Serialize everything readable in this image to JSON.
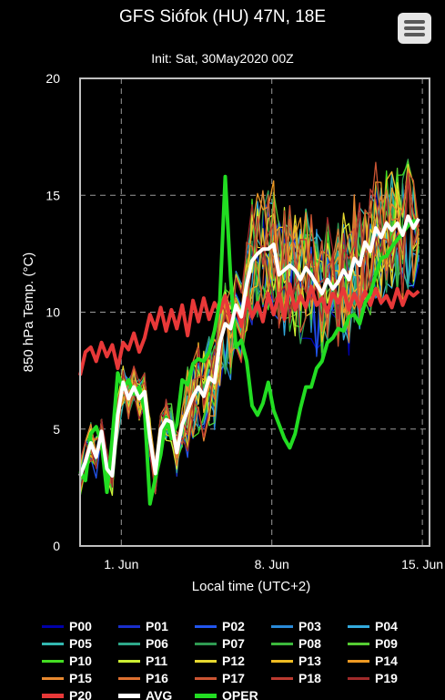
{
  "header": {
    "title": "GFS Siófok (HU) 47N, 18E",
    "subtitle": "Init: Sat, 30May2020 00Z"
  },
  "menu": {
    "icon": "hamburger-menu-icon"
  },
  "chart_data": {
    "type": "line",
    "ylabel": "850 hPa Temp. (°C)",
    "xlabel": "Local time (UTC+2)",
    "ylim": [
      0,
      20
    ],
    "yticks": [
      0,
      5,
      10,
      15,
      20
    ],
    "xlim": [
      "2020-05-30T02:00",
      "2020-06-15T08:00"
    ],
    "xticks": [
      {
        "label": "1. Jun",
        "t": "2020-06-01T00:00"
      },
      {
        "label": "8. Jun",
        "t": "2020-06-08T00:00"
      },
      {
        "label": "15. Jun",
        "t": "2020-06-15T00:00"
      }
    ],
    "grid": true,
    "legend_position": "bottom",
    "series": [
      {
        "name": "P00",
        "color": "#0000aa"
      },
      {
        "name": "P01",
        "color": "#1a2fcc"
      },
      {
        "name": "P02",
        "color": "#2255ee"
      },
      {
        "name": "P03",
        "color": "#2a8ad8"
      },
      {
        "name": "P04",
        "color": "#33aadd"
      },
      {
        "name": "P05",
        "color": "#33b8b0"
      },
      {
        "name": "P06",
        "color": "#2ea88a"
      },
      {
        "name": "P07",
        "color": "#2f9a52"
      },
      {
        "name": "P08",
        "color": "#3cb83c"
      },
      {
        "name": "P09",
        "color": "#55cc33"
      },
      {
        "name": "P10",
        "color": "#44dd22"
      },
      {
        "name": "P11",
        "color": "#ccee33"
      },
      {
        "name": "P12",
        "color": "#e6d830"
      },
      {
        "name": "P13",
        "color": "#eebb22"
      },
      {
        "name": "P14",
        "color": "#ee9922"
      },
      {
        "name": "P15",
        "color": "#e88830"
      },
      {
        "name": "P16",
        "color": "#dd7030"
      },
      {
        "name": "P17",
        "color": "#cc5533"
      },
      {
        "name": "P18",
        "color": "#bb3a30"
      },
      {
        "name": "P19",
        "color": "#a02a2a"
      },
      {
        "name": "P20",
        "color": "#e83838",
        "values": [
          [
            0,
            7.3
          ],
          [
            0.25,
            8.3
          ],
          [
            0.5,
            8.5
          ],
          [
            0.75,
            7.9
          ],
          [
            1,
            8.7
          ],
          [
            1.25,
            8.1
          ],
          [
            1.5,
            8.6
          ],
          [
            1.75,
            7.6
          ],
          [
            2,
            8.7
          ],
          [
            2.25,
            8.4
          ],
          [
            2.5,
            9.1
          ],
          [
            2.75,
            8.3
          ],
          [
            3,
            8.9
          ],
          [
            3.25,
            9.9
          ],
          [
            3.5,
            9.3
          ],
          [
            3.75,
            10.2
          ],
          [
            4,
            9.2
          ],
          [
            4.25,
            10.1
          ],
          [
            4.5,
            9.3
          ],
          [
            4.75,
            10.3
          ],
          [
            5,
            9.0
          ],
          [
            5.25,
            10.5
          ],
          [
            5.5,
            9.6
          ],
          [
            5.75,
            10.6
          ],
          [
            6,
            9.7
          ],
          [
            6.25,
            10.4
          ],
          [
            6.5,
            10.0
          ],
          [
            6.75,
            10.7
          ],
          [
            7,
            9.6
          ],
          [
            7.25,
            10.3
          ],
          [
            7.5,
            9.4
          ],
          [
            7.75,
            10.6
          ],
          [
            8,
            9.8
          ],
          [
            8.25,
            10.4
          ],
          [
            8.5,
            9.6
          ],
          [
            8.75,
            10.8
          ],
          [
            9,
            9.9
          ],
          [
            9.25,
            10.8
          ],
          [
            9.5,
            9.7
          ],
          [
            9.75,
            11.2
          ],
          [
            10,
            10.1
          ],
          [
            10.25,
            10.7
          ],
          [
            10.5,
            10.2
          ],
          [
            10.75,
            11.1
          ],
          [
            11,
            10.3
          ],
          [
            11.25,
            10.6
          ],
          [
            11.5,
            10.0
          ],
          [
            11.75,
            10.8
          ],
          [
            12,
            10.4
          ],
          [
            12.25,
            11.0
          ],
          [
            12.5,
            10.1
          ],
          [
            12.75,
            10.8
          ],
          [
            13,
            10.2
          ],
          [
            13.25,
            10.9
          ],
          [
            13.5,
            10.3
          ],
          [
            13.75,
            11.0
          ],
          [
            14,
            10.4
          ],
          [
            14.25,
            10.7
          ],
          [
            14.5,
            10.2
          ],
          [
            14.75,
            11.0
          ],
          [
            15,
            10.3
          ],
          [
            15.25,
            10.9
          ],
          [
            15.5,
            10.7
          ],
          [
            15.75,
            10.9
          ]
        ]
      },
      {
        "name": "AVG",
        "color": "#ffffff",
        "values": [
          [
            0,
            3.0
          ],
          [
            0.25,
            3.6
          ],
          [
            0.5,
            4.4
          ],
          [
            0.75,
            3.8
          ],
          [
            1,
            4.9
          ],
          [
            1.25,
            3.3
          ],
          [
            1.5,
            3.0
          ],
          [
            1.75,
            5.6
          ],
          [
            2,
            7.0
          ],
          [
            2.25,
            6.3
          ],
          [
            2.5,
            6.8
          ],
          [
            2.75,
            6.3
          ],
          [
            3,
            6.6
          ],
          [
            3.25,
            4.6
          ],
          [
            3.5,
            3.1
          ],
          [
            3.75,
            5.0
          ],
          [
            4,
            5.4
          ],
          [
            4.25,
            5.3
          ],
          [
            4.5,
            4.0
          ],
          [
            4.75,
            5.2
          ],
          [
            5,
            5.8
          ],
          [
            5.25,
            6.4
          ],
          [
            5.5,
            6.8
          ],
          [
            5.75,
            6.4
          ],
          [
            6,
            7.2
          ],
          [
            6.25,
            7.0
          ],
          [
            6.5,
            8.7
          ],
          [
            6.75,
            9.5
          ],
          [
            7,
            9.3
          ],
          [
            7.25,
            10.3
          ],
          [
            7.5,
            9.8
          ],
          [
            7.75,
            11.2
          ],
          [
            8,
            12.2
          ],
          [
            8.25,
            12.5
          ],
          [
            8.5,
            12.7
          ],
          [
            8.75,
            12.7
          ],
          [
            9,
            12.9
          ],
          [
            9.25,
            11.6
          ],
          [
            9.5,
            11.8
          ],
          [
            9.75,
            12.0
          ],
          [
            10,
            11.8
          ],
          [
            10.25,
            11.4
          ],
          [
            10.5,
            11.9
          ],
          [
            10.75,
            11.6
          ],
          [
            11,
            11.2
          ],
          [
            11.25,
            10.8
          ],
          [
            11.5,
            11.4
          ],
          [
            11.75,
            11.0
          ],
          [
            12,
            11.3
          ],
          [
            12.25,
            11.8
          ],
          [
            12.5,
            11.4
          ],
          [
            12.75,
            12.3
          ],
          [
            13,
            12.0
          ],
          [
            13.25,
            13.0
          ],
          [
            13.5,
            12.6
          ],
          [
            13.75,
            13.6
          ],
          [
            14,
            13.2
          ],
          [
            14.25,
            13.8
          ],
          [
            14.5,
            13.5
          ],
          [
            14.75,
            13.8
          ],
          [
            15,
            13.3
          ],
          [
            15.25,
            14.1
          ],
          [
            15.5,
            13.6
          ],
          [
            15.75,
            14.0
          ]
        ]
      },
      {
        "name": "OPER",
        "color": "#22dd22",
        "values": [
          [
            0,
            3.2
          ],
          [
            0.25,
            2.8
          ],
          [
            0.5,
            4.8
          ],
          [
            0.75,
            5.1
          ],
          [
            1,
            4.4
          ],
          [
            1.25,
            2.3
          ],
          [
            1.5,
            4.6
          ],
          [
            1.75,
            7.4
          ],
          [
            2,
            6.7
          ],
          [
            2.25,
            7.1
          ],
          [
            2.5,
            6.5
          ],
          [
            2.75,
            6.8
          ],
          [
            3,
            5.8
          ],
          [
            3.25,
            1.8
          ],
          [
            3.5,
            2.9
          ],
          [
            3.75,
            3.9
          ],
          [
            4,
            5.5
          ],
          [
            4.25,
            4.6
          ],
          [
            4.5,
            5.2
          ],
          [
            4.75,
            7.1
          ],
          [
            5,
            6.9
          ],
          [
            5.25,
            7.8
          ],
          [
            5.5,
            8.0
          ],
          [
            5.75,
            7.9
          ],
          [
            6,
            8.3
          ],
          [
            6.25,
            9.2
          ],
          [
            6.5,
            10.5
          ],
          [
            6.75,
            15.8
          ],
          [
            7,
            11.5
          ],
          [
            7.25,
            8.5
          ],
          [
            7.5,
            8.8
          ],
          [
            7.75,
            7.9
          ],
          [
            8,
            6.0
          ],
          [
            8.25,
            5.6
          ],
          [
            8.5,
            6.1
          ],
          [
            8.75,
            7.0
          ],
          [
            9,
            5.8
          ],
          [
            9.25,
            5.2
          ],
          [
            9.5,
            4.6
          ],
          [
            9.75,
            4.2
          ],
          [
            10,
            4.8
          ],
          [
            10.25,
            5.9
          ],
          [
            10.5,
            6.8
          ],
          [
            10.75,
            6.8
          ],
          [
            11,
            7.6
          ],
          [
            11.25,
            7.9
          ],
          [
            11.5,
            8.7
          ],
          [
            11.75,
            8.9
          ],
          [
            12,
            9.3
          ],
          [
            12.25,
            9.2
          ],
          [
            12.5,
            9.8
          ],
          [
            12.75,
            9.9
          ],
          [
            13,
            9.5
          ],
          [
            13.25,
            10.4
          ],
          [
            13.5,
            10.8
          ],
          [
            13.75,
            11.6
          ],
          [
            14,
            12.3
          ],
          [
            14.25,
            12.4
          ],
          [
            14.5,
            12.8
          ],
          [
            14.75,
            13.1
          ],
          [
            15,
            13.4
          ],
          [
            15.25,
            13.7
          ],
          [
            15.5,
            13.9
          ],
          [
            15.75,
            13.9
          ]
        ]
      }
    ]
  }
}
